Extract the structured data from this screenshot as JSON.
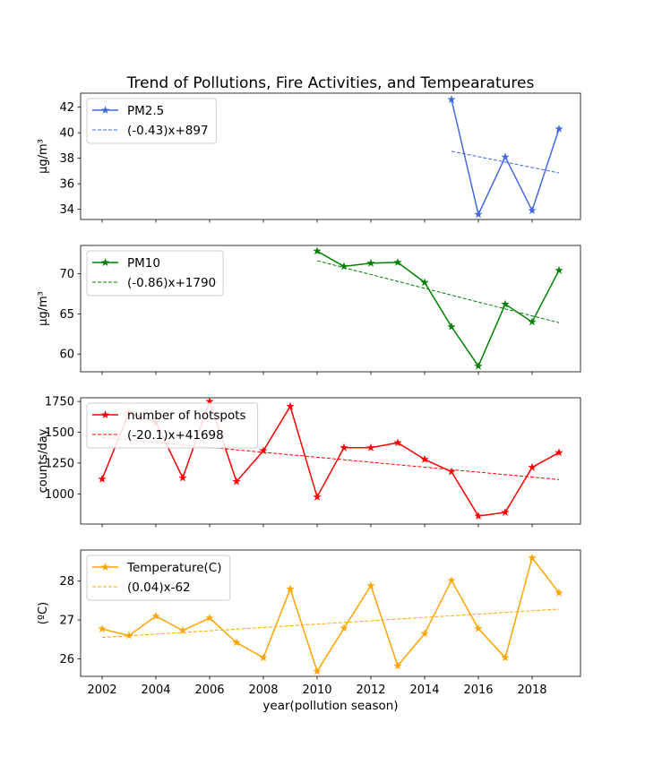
{
  "title": "Trend of Pollutions, Fire Activities, and Tempearatures",
  "xlabel": "year(pollution season)",
  "chart_data": [
    {
      "type": "line",
      "ylabel": "μg/m³",
      "xlim": [
        2001.2,
        2019.8
      ],
      "ylim": [
        33.2,
        43.1
      ],
      "xticks": [
        "2002",
        "2004",
        "2006",
        "2008",
        "2010",
        "2012",
        "2014",
        "2016",
        "2018"
      ],
      "yticks": [
        "34",
        "36",
        "38",
        "40",
        "42"
      ],
      "legend_position": "top-left",
      "series": [
        {
          "name": "PM2.5",
          "color": "#4169e1",
          "marker": "star",
          "x": [
            2015,
            2016,
            2017,
            2018,
            2019
          ],
          "y": [
            42.6,
            33.6,
            38.1,
            33.9,
            40.3
          ]
        },
        {
          "name": "(-0.43)x+897",
          "color": "#4169e1",
          "dashed": true,
          "x": [
            2015,
            2019
          ],
          "y": [
            38.55,
            36.85
          ]
        }
      ]
    },
    {
      "type": "line",
      "ylabel": "μg/m³",
      "xlim": [
        2001.2,
        2019.8
      ],
      "ylim": [
        57.8,
        73.5
      ],
      "xticks": [
        "2002",
        "2004",
        "2006",
        "2008",
        "2010",
        "2012",
        "2014",
        "2016",
        "2018"
      ],
      "yticks": [
        "60",
        "65",
        "70"
      ],
      "legend_position": "top-left",
      "series": [
        {
          "name": "PM10",
          "color": "#008000",
          "marker": "star",
          "x": [
            2010,
            2011,
            2012,
            2013,
            2014,
            2015,
            2016,
            2017,
            2018,
            2019
          ],
          "y": [
            72.8,
            70.9,
            71.3,
            71.4,
            68.9,
            63.4,
            58.5,
            66.2,
            64.0,
            70.4
          ]
        },
        {
          "name": "(-0.86)x+1790",
          "color": "#008000",
          "dashed": true,
          "x": [
            2010,
            2019
          ],
          "y": [
            71.6,
            63.9
          ]
        }
      ]
    },
    {
      "type": "line",
      "ylabel": "counts/day",
      "xlim": [
        2001.2,
        2019.8
      ],
      "ylim": [
        755,
        1780
      ],
      "xticks": [
        "2002",
        "2004",
        "2006",
        "2008",
        "2010",
        "2012",
        "2014",
        "2016",
        "2018"
      ],
      "yticks": [
        "1000",
        "1250",
        "1500",
        "1750"
      ],
      "legend_position": "top-left",
      "series": [
        {
          "name": "number of hotspots",
          "color": "#ff0000",
          "marker": "star",
          "x": [
            2002,
            2003,
            2004,
            2005,
            2006,
            2007,
            2008,
            2009,
            2010,
            2011,
            2012,
            2013,
            2014,
            2015,
            2016,
            2017,
            2018,
            2019
          ],
          "y": [
            1120,
            1660,
            1580,
            1130,
            1750,
            1100,
            1350,
            1710,
            975,
            1375,
            1375,
            1415,
            1280,
            1180,
            820,
            850,
            1215,
            1335
          ]
        },
        {
          "name": "(-20.1)x+41698",
          "color": "#ff0000",
          "dashed": true,
          "x": [
            2002,
            2019
          ],
          "y": [
            1458,
            1116
          ]
        }
      ]
    },
    {
      "type": "line",
      "ylabel": "(ºC)",
      "xlim": [
        2001.2,
        2019.8
      ],
      "ylim": [
        25.55,
        28.8
      ],
      "xticks": [
        "2002",
        "2004",
        "2006",
        "2008",
        "2010",
        "2012",
        "2014",
        "2016",
        "2018"
      ],
      "yticks": [
        "26",
        "27",
        "28"
      ],
      "legend_position": "top-left",
      "series": [
        {
          "name": "Temperature(C)",
          "color": "#ffa500",
          "marker": "star",
          "x": [
            2002,
            2003,
            2004,
            2005,
            2006,
            2007,
            2008,
            2009,
            2010,
            2011,
            2012,
            2013,
            2014,
            2015,
            2016,
            2017,
            2018,
            2019
          ],
          "y": [
            26.77,
            26.6,
            27.1,
            26.73,
            27.05,
            26.42,
            26.03,
            27.8,
            25.68,
            26.79,
            27.88,
            25.82,
            26.65,
            28.02,
            26.78,
            26.03,
            28.6,
            27.7
          ]
        },
        {
          "name": "(0.04)x-62",
          "color": "#ffa500",
          "dashed": true,
          "x": [
            2002,
            2019
          ],
          "y": [
            26.55,
            27.28
          ]
        }
      ]
    }
  ]
}
